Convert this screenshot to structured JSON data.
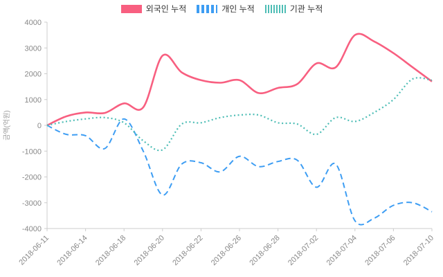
{
  "chart_data": {
    "type": "line",
    "title": "",
    "ylabel": "금액(억원)",
    "ylim": [
      -4000,
      4000
    ],
    "y_ticks": [
      4000,
      3000,
      2000,
      1000,
      0,
      -1000,
      -2000,
      -3000,
      -4000
    ],
    "grid": false,
    "legend_position": "top-center",
    "axis_color": "#cccccc",
    "tick_label_color": "#888888",
    "ylabel_color": "#999999",
    "x": [
      "2018-06-11",
      "2018-06-12",
      "2018-06-14",
      "2018-06-15",
      "2018-06-18",
      "2018-06-19",
      "2018-06-20",
      "2018-06-21",
      "2018-06-22",
      "2018-06-25",
      "2018-06-26",
      "2018-06-27",
      "2018-06-28",
      "2018-06-29",
      "2018-07-02",
      "2018-07-03",
      "2018-07-04",
      "2018-07-05",
      "2018-07-06",
      "2018-07-09",
      "2018-07-10"
    ],
    "x_tick_labels": [
      "2018-06-11",
      "2018-06-14",
      "2018-06-18",
      "2018-06-20",
      "2018-06-22",
      "2018-06-26",
      "2018-06-28",
      "2018-07-02",
      "2018-07-04",
      "2018-07-06",
      "2018-07-10"
    ],
    "x_tick_indices": [
      0,
      2,
      4,
      6,
      8,
      10,
      12,
      14,
      16,
      18,
      20
    ],
    "series": [
      {
        "key": "foreigner",
        "name": "외국인 누적",
        "color": "#f85f80",
        "style": "solid",
        "values": [
          0,
          350,
          500,
          480,
          850,
          700,
          2700,
          2050,
          1750,
          1650,
          1750,
          1250,
          1450,
          1600,
          2400,
          2250,
          3500,
          3250,
          2800,
          2250,
          1700
        ]
      },
      {
        "key": "individual",
        "name": "개인 누적",
        "color": "#3d9df3",
        "style": "dashed",
        "values": [
          0,
          -350,
          -400,
          -900,
          250,
          -1000,
          -2700,
          -1500,
          -1450,
          -1800,
          -1200,
          -1600,
          -1400,
          -1350,
          -2400,
          -1500,
          -3700,
          -3600,
          -3100,
          -3000,
          -3350
        ]
      },
      {
        "key": "institution",
        "name": "기관 누적",
        "color": "#4dbdb5",
        "style": "dotted",
        "values": [
          0,
          150,
          250,
          300,
          100,
          -600,
          -950,
          50,
          100,
          300,
          400,
          400,
          100,
          50,
          -350,
          300,
          150,
          500,
          1000,
          1800,
          1750
        ]
      }
    ]
  }
}
